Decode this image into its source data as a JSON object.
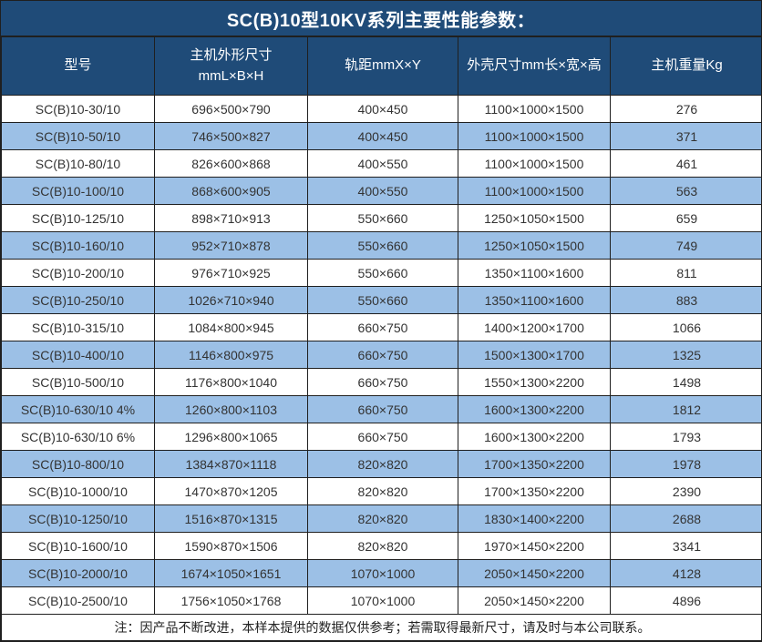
{
  "title": "SC(B)10型10KV系列主要性能参数：",
  "table": {
    "columns": [
      {
        "label": "型号",
        "label2": ""
      },
      {
        "label": "主机外形尺寸",
        "label2": "mmL×B×H"
      },
      {
        "label": "轨距mmX×Y",
        "label2": ""
      },
      {
        "label": "外壳尺寸mm长×宽×高",
        "label2": ""
      },
      {
        "label": "主机重量Kg",
        "label2": ""
      }
    ],
    "rows": [
      [
        "SC(B)10-30/10",
        "696×500×790",
        "400×450",
        "1100×1000×1500",
        "276"
      ],
      [
        "SC(B)10-50/10",
        "746×500×827",
        "400×450",
        "1100×1000×1500",
        "371"
      ],
      [
        "SC(B)10-80/10",
        "826×600×868",
        "400×550",
        "1100×1000×1500",
        "461"
      ],
      [
        "SC(B)10-100/10",
        "868×600×905",
        "400×550",
        "1100×1000×1500",
        "563"
      ],
      [
        "SC(B)10-125/10",
        "898×710×913",
        "550×660",
        "1250×1050×1500",
        "659"
      ],
      [
        "SC(B)10-160/10",
        "952×710×878",
        "550×660",
        "1250×1050×1500",
        "749"
      ],
      [
        "SC(B)10-200/10",
        "976×710×925",
        "550×660",
        "1350×1100×1600",
        "811"
      ],
      [
        "SC(B)10-250/10",
        "1026×710×940",
        "550×660",
        "1350×1100×1600",
        "883"
      ],
      [
        "SC(B)10-315/10",
        "1084×800×945",
        "660×750",
        "1400×1200×1700",
        "1066"
      ],
      [
        "SC(B)10-400/10",
        "1146×800×975",
        "660×750",
        "1500×1300×1700",
        "1325"
      ],
      [
        "SC(B)10-500/10",
        "1176×800×1040",
        "660×750",
        "1550×1300×2200",
        "1498"
      ],
      [
        "SC(B)10-630/10 4%",
        "1260×800×1103",
        "660×750",
        "1600×1300×2200",
        "1812"
      ],
      [
        "SC(B)10-630/10 6%",
        "1296×800×1065",
        "660×750",
        "1600×1300×2200",
        "1793"
      ],
      [
        "SC(B)10-800/10",
        "1384×870×1118",
        "820×820",
        "1700×1350×2200",
        "1978"
      ],
      [
        "SC(B)10-1000/10",
        "1470×870×1205",
        "820×820",
        "1700×1350×2200",
        "2390"
      ],
      [
        "SC(B)10-1250/10",
        "1516×870×1315",
        "820×820",
        "1830×1400×2200",
        "2688"
      ],
      [
        "SC(B)10-1600/10",
        "1590×870×1506",
        "820×820",
        "1970×1450×2200",
        "3341"
      ],
      [
        "SC(B)10-2000/10",
        "1674×1050×1651",
        "1070×1000",
        "2050×1450×2200",
        "4128"
      ],
      [
        "SC(B)10-2500/10",
        "1756×1050×1768",
        "1070×1000",
        "2050×1450×2200",
        "4896"
      ]
    ]
  },
  "footnote": "注：因产品不断改进，本样本提供的数据仅供参考；若需取得最新尺寸，请及时与本公司联系。",
  "colors": {
    "header_bg": "#1F4B78",
    "row_alt_bg": "#9CC0E6",
    "row_bg": "#FFFFFF",
    "border": "#1F1F1F",
    "body_text": "#333333",
    "header_text": "#FFFFFF"
  }
}
